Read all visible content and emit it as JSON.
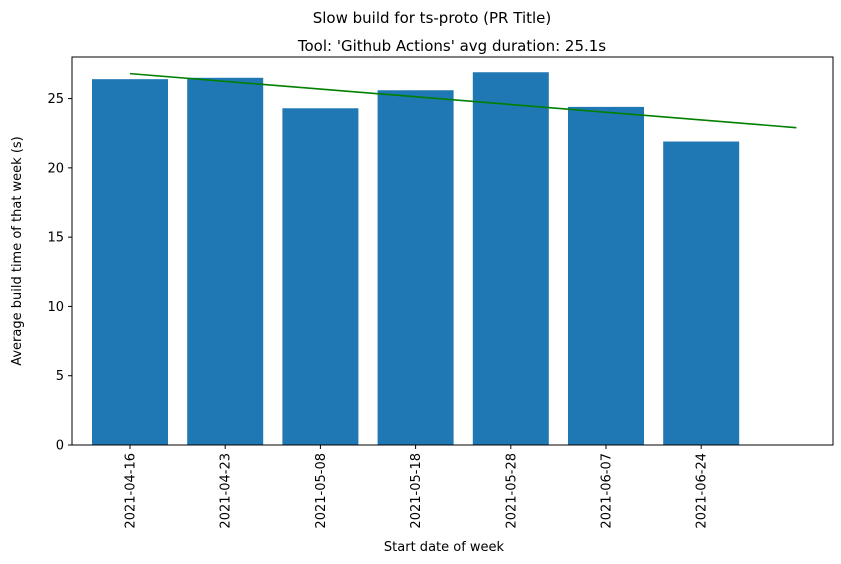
{
  "chart_data": {
    "type": "bar",
    "suptitle": "Slow build for ts-proto (PR Title)",
    "title": "Tool: 'Github Actions' avg duration: 25.1s",
    "xlabel": "Start date of week",
    "ylabel": "Average build time of that week (s)",
    "categories": [
      "2021-04-16",
      "2021-04-23",
      "2021-05-08",
      "2021-05-18",
      "2021-05-28",
      "2021-06-07",
      "2021-06-24"
    ],
    "series": [
      {
        "values": [
          26.4,
          26.5,
          24.3,
          25.6,
          26.9,
          24.4,
          21.9
        ]
      }
    ],
    "trendline": {
      "start": 26.8,
      "end": 22.9
    },
    "ylim": [
      0,
      28
    ],
    "yticks": [
      0,
      5,
      10,
      15,
      20,
      25
    ],
    "grid": false,
    "legend": "none",
    "colors": {
      "bar": "#1f77b4",
      "trend": "#008000"
    }
  }
}
